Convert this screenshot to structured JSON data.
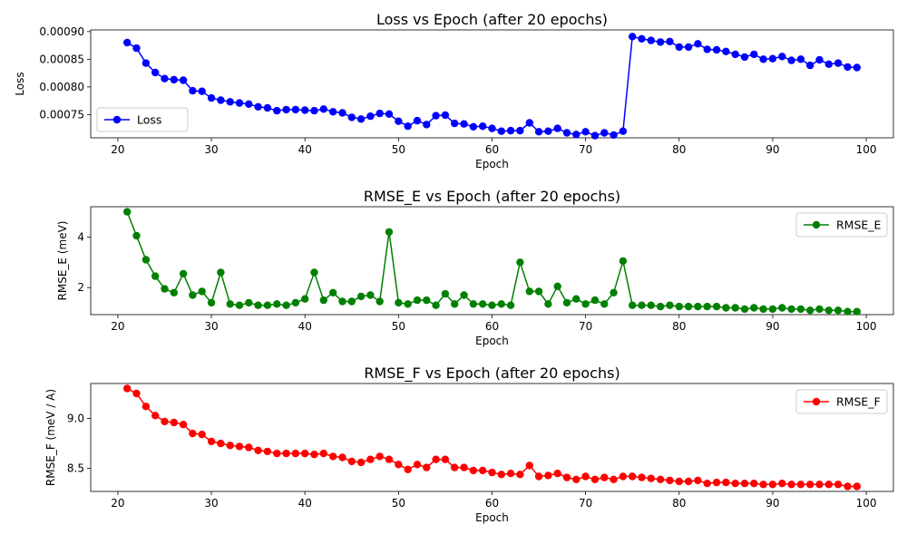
{
  "chart_data": [
    {
      "type": "line",
      "title": "Loss vs Epoch (after 20 epochs)",
      "xlabel": "Epoch",
      "ylabel": "Loss",
      "xlim": [
        17.1,
        102.9
      ],
      "ylim": [
        0.000708,
        0.000903
      ],
      "xticks": [
        20,
        30,
        40,
        50,
        60,
        70,
        80,
        90,
        100
      ],
      "yticks": [
        0.00075,
        0.0008,
        0.00085,
        0.0009
      ],
      "ytick_labels": [
        "0.00075",
        "0.00080",
        "0.00085",
        "0.00090"
      ],
      "legend_position": "lower left",
      "grid": false,
      "series": [
        {
          "name": "Loss",
          "color": "#0000ff",
          "marker": "o",
          "x": [
            21,
            22,
            23,
            24,
            25,
            26,
            27,
            28,
            29,
            30,
            31,
            32,
            33,
            34,
            35,
            36,
            37,
            38,
            39,
            40,
            41,
            42,
            43,
            44,
            45,
            46,
            47,
            48,
            49,
            50,
            51,
            52,
            53,
            54,
            55,
            56,
            57,
            58,
            59,
            60,
            61,
            62,
            63,
            64,
            65,
            66,
            67,
            68,
            69,
            70,
            71,
            72,
            73,
            74,
            75,
            76,
            77,
            78,
            79,
            80,
            81,
            82,
            83,
            84,
            85,
            86,
            87,
            88,
            89,
            90,
            91,
            92,
            93,
            94,
            95,
            96,
            97,
            98,
            99
          ],
          "y": [
            0.00088,
            0.00087,
            0.000843,
            0.000826,
            0.000815,
            0.000813,
            0.000812,
            0.000793,
            0.000792,
            0.00078,
            0.000776,
            0.000773,
            0.000771,
            0.000769,
            0.000764,
            0.000762,
            0.000757,
            0.000759,
            0.000759,
            0.000758,
            0.000757,
            0.00076,
            0.000755,
            0.000753,
            0.000745,
            0.000742,
            0.000747,
            0.000752,
            0.000751,
            0.000738,
            0.000729,
            0.000739,
            0.000732,
            0.000748,
            0.000749,
            0.000734,
            0.000733,
            0.000728,
            0.000729,
            0.000725,
            0.00072,
            0.000721,
            0.000721,
            0.000735,
            0.000719,
            0.00072,
            0.000725,
            0.000717,
            0.000714,
            0.000719,
            0.000712,
            0.000717,
            0.000713,
            0.00072,
            0.000891,
            0.000887,
            0.000884,
            0.000881,
            0.000882,
            0.000872,
            0.000872,
            0.000878,
            0.000868,
            0.000867,
            0.000864,
            0.000859,
            0.000854,
            0.000859,
            0.00085,
            0.000851,
            0.000855,
            0.000848,
            0.00085,
            0.000839,
            0.000849,
            0.000841,
            0.000843,
            0.000836,
            0.000835
          ]
        }
      ]
    },
    {
      "type": "line",
      "title": "RMSE_E vs Epoch (after 20 epochs)",
      "xlabel": "Epoch",
      "ylabel": "RMSE_E (meV)",
      "xlim": [
        17.1,
        102.9
      ],
      "ylim": [
        0.93,
        5.2
      ],
      "xticks": [
        20,
        30,
        40,
        50,
        60,
        70,
        80,
        90,
        100
      ],
      "yticks": [
        2,
        4
      ],
      "ytick_labels": [
        "2",
        "4"
      ],
      "legend_position": "upper right",
      "grid": false,
      "series": [
        {
          "name": "RMSE_E",
          "color": "#008000",
          "marker": "o",
          "x": [
            21,
            22,
            23,
            24,
            25,
            26,
            27,
            28,
            29,
            30,
            31,
            32,
            33,
            34,
            35,
            36,
            37,
            38,
            39,
            40,
            41,
            42,
            43,
            44,
            45,
            46,
            47,
            48,
            49,
            50,
            51,
            52,
            53,
            54,
            55,
            56,
            57,
            58,
            59,
            60,
            61,
            62,
            63,
            64,
            65,
            66,
            67,
            68,
            69,
            70,
            71,
            72,
            73,
            74,
            75,
            76,
            77,
            78,
            79,
            80,
            81,
            82,
            83,
            84,
            85,
            86,
            87,
            88,
            89,
            90,
            91,
            92,
            93,
            94,
            95,
            96,
            97,
            98,
            99
          ],
          "y": [
            5.0,
            4.05,
            3.1,
            2.45,
            1.95,
            1.8,
            2.55,
            1.7,
            1.85,
            1.4,
            2.6,
            1.35,
            1.3,
            1.4,
            1.3,
            1.3,
            1.35,
            1.3,
            1.4,
            1.55,
            2.6,
            1.5,
            1.8,
            1.45,
            1.45,
            1.65,
            1.7,
            1.45,
            4.2,
            1.4,
            1.35,
            1.5,
            1.5,
            1.3,
            1.75,
            1.35,
            1.7,
            1.35,
            1.35,
            1.3,
            1.35,
            1.3,
            3.0,
            1.85,
            1.85,
            1.35,
            2.05,
            1.4,
            1.55,
            1.35,
            1.5,
            1.35,
            1.8,
            3.05,
            1.3,
            1.3,
            1.3,
            1.25,
            1.3,
            1.25,
            1.25,
            1.25,
            1.25,
            1.25,
            1.2,
            1.2,
            1.15,
            1.2,
            1.15,
            1.15,
            1.2,
            1.15,
            1.15,
            1.1,
            1.15,
            1.1,
            1.1,
            1.05,
            1.05
          ]
        }
      ]
    },
    {
      "type": "line",
      "title": "RMSE_F vs Epoch (after 20 epochs)",
      "xlabel": "Epoch",
      "ylabel": "RMSE_F (meV / A)",
      "xlim": [
        17.1,
        102.9
      ],
      "ylim": [
        8.27,
        9.35
      ],
      "xticks": [
        20,
        30,
        40,
        50,
        60,
        70,
        80,
        90,
        100
      ],
      "yticks": [
        8.5,
        9.0
      ],
      "ytick_labels": [
        "8.5",
        "9.0"
      ],
      "legend_position": "upper right",
      "grid": false,
      "series": [
        {
          "name": "RMSE_F",
          "color": "#ff0000",
          "marker": "o",
          "x": [
            21,
            22,
            23,
            24,
            25,
            26,
            27,
            28,
            29,
            30,
            31,
            32,
            33,
            34,
            35,
            36,
            37,
            38,
            39,
            40,
            41,
            42,
            43,
            44,
            45,
            46,
            47,
            48,
            49,
            50,
            51,
            52,
            53,
            54,
            55,
            56,
            57,
            58,
            59,
            60,
            61,
            62,
            63,
            64,
            65,
            66,
            67,
            68,
            69,
            70,
            71,
            72,
            73,
            74,
            75,
            76,
            77,
            78,
            79,
            80,
            81,
            82,
            83,
            84,
            85,
            86,
            87,
            88,
            89,
            90,
            91,
            92,
            93,
            94,
            95,
            96,
            97,
            98,
            99
          ],
          "y": [
            9.3,
            9.25,
            9.12,
            9.03,
            8.97,
            8.96,
            8.94,
            8.85,
            8.84,
            8.77,
            8.75,
            8.73,
            8.72,
            8.71,
            8.68,
            8.67,
            8.65,
            8.65,
            8.65,
            8.65,
            8.64,
            8.65,
            8.62,
            8.61,
            8.57,
            8.56,
            8.59,
            8.62,
            8.59,
            8.54,
            8.49,
            8.54,
            8.51,
            8.59,
            8.59,
            8.51,
            8.51,
            8.48,
            8.48,
            8.46,
            8.44,
            8.45,
            8.44,
            8.53,
            8.42,
            8.43,
            8.45,
            8.41,
            8.39,
            8.42,
            8.39,
            8.41,
            8.39,
            8.42,
            8.42,
            8.41,
            8.4,
            8.39,
            8.38,
            8.37,
            8.37,
            8.38,
            8.35,
            8.36,
            8.36,
            8.35,
            8.35,
            8.35,
            8.34,
            8.34,
            8.35,
            8.34,
            8.34,
            8.34,
            8.34,
            8.34,
            8.34,
            8.32,
            8.32
          ]
        }
      ]
    }
  ]
}
